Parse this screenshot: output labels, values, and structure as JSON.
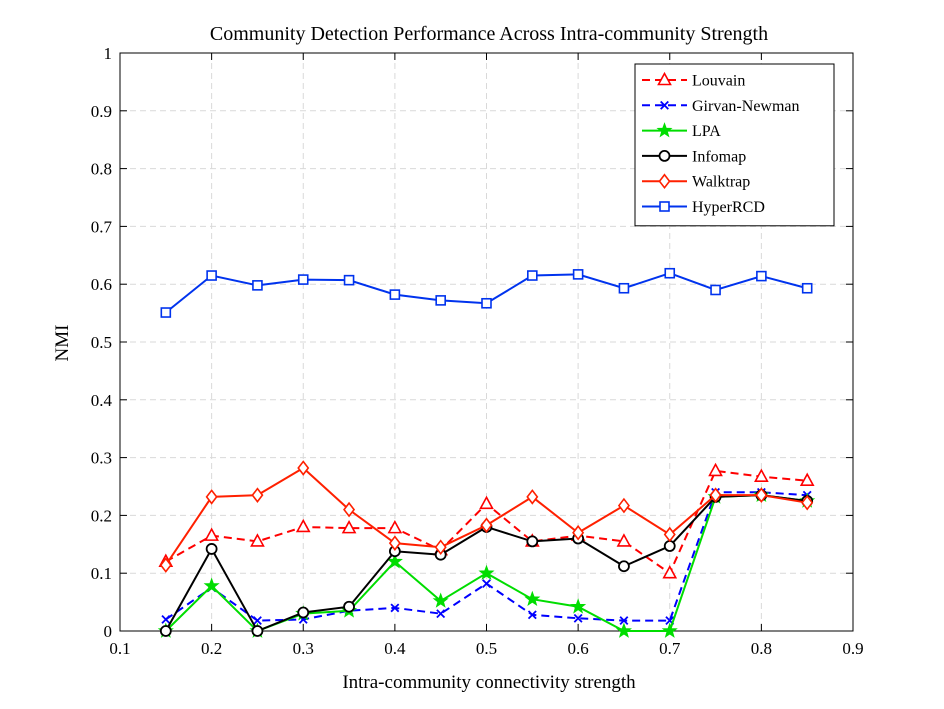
{
  "chart_data": {
    "type": "line",
    "title": "Community Detection Performance Across Intra-community Strength",
    "xlabel": "Intra-community connectivity strength",
    "ylabel": "NMI",
    "xlim": [
      0.1,
      0.9
    ],
    "ylim": [
      0,
      1
    ],
    "xticks": [
      "0.1",
      "0.2",
      "0.3",
      "0.4",
      "0.5",
      "0.6",
      "0.7",
      "0.8",
      "0.9"
    ],
    "yticks": [
      "0",
      "0.1",
      "0.2",
      "0.3",
      "0.4",
      "0.5",
      "0.6",
      "0.7",
      "0.8",
      "0.9",
      "1"
    ],
    "grid": true,
    "legend_position": "top-right",
    "x": [
      0.15,
      0.2,
      0.25,
      0.3,
      0.35,
      0.4,
      0.45,
      0.5,
      0.55,
      0.6,
      0.65,
      0.7,
      0.75,
      0.8,
      0.85
    ],
    "series": [
      {
        "name": "Louvain",
        "color": "#ff0000",
        "dash": "dashed",
        "marker": "triangle",
        "values": [
          0.12,
          0.165,
          0.155,
          0.18,
          0.178,
          0.178,
          0.14,
          0.22,
          0.155,
          0.165,
          0.155,
          0.1,
          0.277,
          0.267,
          0.26
        ]
      },
      {
        "name": "Girvan-Newman",
        "color": "#0000ff",
        "dash": "dashed",
        "marker": "x",
        "values": [
          0.02,
          0.075,
          0.018,
          0.02,
          0.035,
          0.04,
          0.03,
          0.082,
          0.028,
          0.022,
          0.018,
          0.018,
          0.24,
          0.24,
          0.235
        ]
      },
      {
        "name": "LPA",
        "color": "#00dd00",
        "dash": "solid",
        "marker": "star",
        "values": [
          0.0,
          0.078,
          0.0,
          0.03,
          0.035,
          0.12,
          0.052,
          0.1,
          0.055,
          0.042,
          0.0,
          0.0,
          0.232,
          0.235,
          0.225
        ]
      },
      {
        "name": "Infomap",
        "color": "#000000",
        "dash": "solid",
        "marker": "circle",
        "values": [
          0.0,
          0.142,
          0.0,
          0.032,
          0.042,
          0.138,
          0.132,
          0.18,
          0.155,
          0.16,
          0.112,
          0.147,
          0.232,
          0.235,
          0.225
        ]
      },
      {
        "name": "Walktrap",
        "color": "#ff2000",
        "dash": "solid",
        "marker": "diamond",
        "values": [
          0.114,
          0.232,
          0.235,
          0.282,
          0.21,
          0.152,
          0.145,
          0.183,
          0.232,
          0.17,
          0.217,
          0.167,
          0.235,
          0.235,
          0.222
        ]
      },
      {
        "name": "HyperRCD",
        "color": "#0033ee",
        "dash": "solid",
        "marker": "square",
        "values": [
          0.551,
          0.615,
          0.598,
          0.608,
          0.607,
          0.582,
          0.572,
          0.567,
          0.615,
          0.617,
          0.593,
          0.619,
          0.59,
          0.614,
          0.593
        ]
      }
    ]
  }
}
